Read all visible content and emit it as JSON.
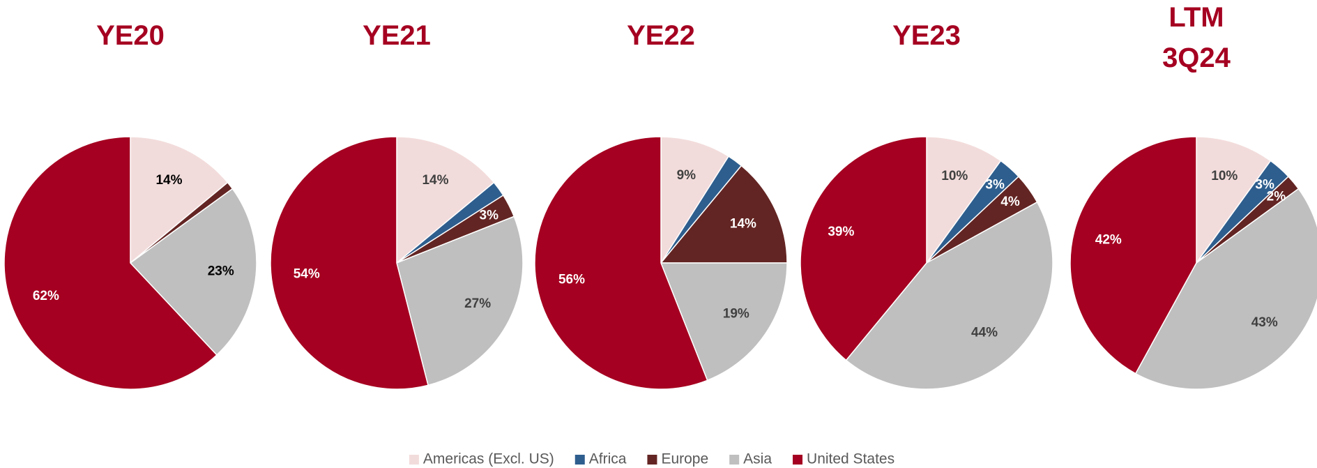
{
  "chart_data": [
    {
      "type": "pie",
      "title": "YE20",
      "categories": [
        "Americas (Excl. US)",
        "Africa",
        "Europe",
        "Asia",
        "United States"
      ],
      "colors": [
        "#f2dcdb",
        "#2e5e8e",
        "#632523",
        "#bfbfbf",
        "#a50021"
      ],
      "values": [
        14,
        0,
        1,
        23,
        62
      ],
      "value_labels": [
        "14%",
        null,
        null,
        "23%",
        "62%"
      ]
    },
    {
      "type": "pie",
      "title": "YE21",
      "categories": [
        "Americas (Excl. US)",
        "Africa",
        "Europe",
        "Asia",
        "United States"
      ],
      "colors": [
        "#f2dcdb",
        "#2e5e8e",
        "#632523",
        "#bfbfbf",
        "#a50021"
      ],
      "values": [
        14,
        2,
        3,
        27,
        54
      ],
      "value_labels": [
        "14%",
        null,
        "3%",
        "27%",
        "54%"
      ]
    },
    {
      "type": "pie",
      "title": "YE22",
      "categories": [
        "Americas (Excl. US)",
        "Africa",
        "Europe",
        "Asia",
        "United States"
      ],
      "colors": [
        "#f2dcdb",
        "#2e5e8e",
        "#632523",
        "#bfbfbf",
        "#a50021"
      ],
      "values": [
        9,
        2,
        14,
        19,
        56
      ],
      "value_labels": [
        "9%",
        null,
        "14%",
        "19%",
        "56%"
      ]
    },
    {
      "type": "pie",
      "title": "YE23",
      "categories": [
        "Americas (Excl. US)",
        "Africa",
        "Europe",
        "Asia",
        "United States"
      ],
      "colors": [
        "#f2dcdb",
        "#2e5e8e",
        "#632523",
        "#bfbfbf",
        "#a50021"
      ],
      "values": [
        10,
        3,
        4,
        44,
        39
      ],
      "value_labels": [
        "10%",
        "3%",
        "4%",
        "44%",
        "39%"
      ]
    },
    {
      "type": "pie",
      "title": "LTM 3Q24",
      "categories": [
        "Americas (Excl. US)",
        "Africa",
        "Europe",
        "Asia",
        "United States"
      ],
      "colors": [
        "#f2dcdb",
        "#2e5e8e",
        "#632523",
        "#bfbfbf",
        "#a50021"
      ],
      "values": [
        10,
        3,
        2,
        43,
        42
      ],
      "value_labels": [
        "10%",
        "3%",
        "2%",
        "43%",
        "42%"
      ]
    }
  ]
}
